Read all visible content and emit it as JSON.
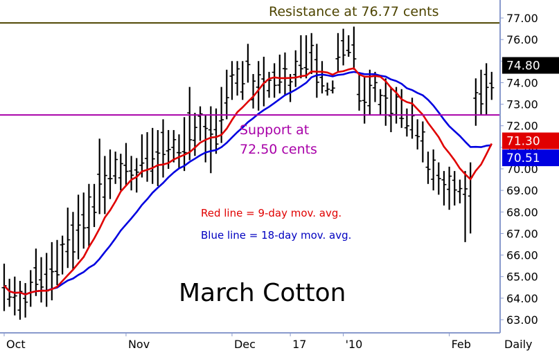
{
  "chart_data": {
    "type": "bar",
    "subtype": "ohlc-price-chart",
    "title": "March Cotton",
    "period_label": "Daily",
    "ylim": [
      62.6,
      78.2
    ],
    "y_ticks": [
      "63.00",
      "64.00",
      "65.00",
      "66.00",
      "67.00",
      "68.00",
      "69.00",
      "70.00",
      "71.00",
      "72.00",
      "73.00",
      "74.00",
      "75.00",
      "76.00",
      "77.00"
    ],
    "x_ticks": [
      {
        "label": "Oct",
        "bar": 0
      },
      {
        "label": "Nov",
        "bar": 23
      },
      {
        "label": "Dec",
        "bar": 43
      },
      {
        "label": "17",
        "bar": 54
      },
      {
        "label": "'10",
        "bar": 64
      },
      {
        "label": "Feb",
        "bar": 84
      }
    ],
    "bar_count": 93,
    "lows": [
      63.4,
      63.6,
      63.2,
      63.0,
      63.1,
      63.6,
      64.1,
      63.8,
      63.6,
      63.9,
      64.6,
      65.1,
      65.4,
      65.3,
      65.8,
      66.3,
      66.4,
      67.3,
      67.9,
      67.9,
      68.6,
      69.3,
      69.0,
      69.2,
      69.0,
      68.9,
      69.6,
      69.4,
      69.3,
      69.2,
      69.6,
      70.0,
      70.3,
      70.0,
      69.9,
      70.4,
      70.6,
      71.3,
      70.3,
      69.8,
      70.7,
      71.2,
      72.3,
      73.2,
      73.4,
      73.2,
      74.0,
      72.8,
      72.7,
      72.9,
      73.3,
      73.3,
      73.5,
      73.4,
      73.1,
      73.8,
      74.2,
      74.2,
      74.4,
      73.3,
      73.5,
      73.4,
      73.5,
      74.5,
      74.8,
      75.2,
      74.6,
      72.7,
      72.1,
      72.5,
      73.1,
      72.5,
      72.0,
      71.7,
      72.1,
      71.9,
      71.5,
      71.4,
      70.9,
      70.3,
      69.3,
      69.0,
      68.8,
      68.3,
      68.1,
      68.3,
      68.4,
      66.6,
      67.0,
      72.0,
      72.5,
      72.5,
      73.2
    ],
    "highs": [
      65.6,
      64.9,
      65.0,
      64.8,
      64.7,
      65.3,
      66.3,
      65.9,
      66.1,
      66.6,
      66.7,
      66.9,
      68.2,
      68.0,
      68.8,
      68.9,
      69.3,
      69.3,
      71.4,
      70.6,
      70.9,
      70.8,
      70.7,
      71.2,
      70.6,
      70.5,
      71.6,
      71.7,
      71.9,
      71.8,
      72.3,
      71.8,
      71.8,
      71.6,
      72.4,
      73.8,
      72.6,
      72.9,
      72.5,
      72.9,
      72.8,
      73.8,
      74.6,
      75.0,
      75.0,
      75.0,
      75.8,
      74.4,
      75.0,
      75.2,
      74.5,
      74.9,
      75.3,
      75.4,
      74.4,
      75.5,
      76.2,
      76.2,
      76.3,
      75.8,
      75.0,
      74.0,
      74.1,
      76.3,
      76.5,
      76.2,
      76.6,
      74.4,
      74.3,
      74.6,
      74.5,
      73.7,
      74.2,
      73.8,
      73.8,
      73.7,
      72.8,
      73.3,
      72.3,
      72.2,
      70.8,
      70.9,
      70.3,
      69.9,
      70.1,
      69.9,
      69.5,
      69.9,
      70.3,
      74.2,
      74.6,
      74.9,
      74.5
    ],
    "ma9_label": "Red line = 9-day mov. avg.",
    "ma18_label": "Blue line = 18-day mov. avg.",
    "ma9_color": "#e00000",
    "ma18_color": "#0000e0",
    "resistance": {
      "value": 76.77,
      "label": "Resistance at 76.77 cents",
      "color": "#4d4400"
    },
    "support": {
      "value": 72.5,
      "label_line1": "Support at",
      "label_line2": "72.50 cents",
      "color": "#a800a8"
    },
    "price_tags": [
      {
        "text": "74.80",
        "value": 74.8,
        "bg": "#000000",
        "fg": "#ffffff"
      },
      {
        "text": "71.30",
        "value": 71.3,
        "bg": "#e00000",
        "fg": "#ffffff"
      },
      {
        "text": "70.51",
        "value": 70.51,
        "bg": "#0000e0",
        "fg": "#ffffff"
      }
    ],
    "legend_position": "center-right",
    "grid": false
  }
}
